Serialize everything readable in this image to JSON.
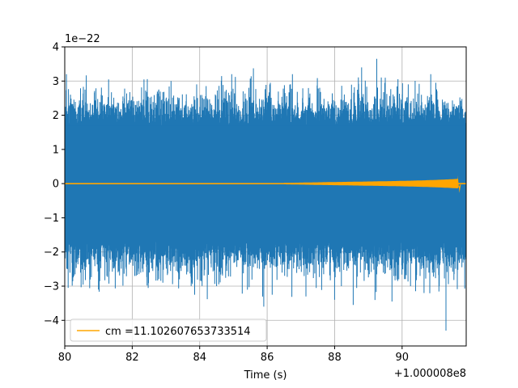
{
  "chart_data": {
    "type": "line",
    "title": "",
    "xlabel": "Time (s)",
    "ylabel": "",
    "x_offset_label": "+1.000008e8",
    "y_scale_label": "1e−22",
    "xlim": [
      80,
      91.9
    ],
    "ylim": [
      -4.75,
      4.0
    ],
    "grid": true,
    "x_ticks": [
      80,
      82,
      84,
      86,
      88,
      90
    ],
    "x_tick_labels": [
      "80",
      "82",
      "84",
      "86",
      "88",
      "90"
    ],
    "y_ticks": [
      -4,
      -3,
      -2,
      -1,
      0,
      1,
      2,
      3,
      4
    ],
    "y_tick_labels": [
      "−4",
      "−3",
      "−2",
      "−1",
      "0",
      "1",
      "2",
      "3",
      "4"
    ],
    "legend_position": "lower-left",
    "series": [
      {
        "name": "",
        "color": "#1f77b4",
        "kind": "noise",
        "envelope_x": [
          80,
          91.9
        ],
        "core_amplitude": [
          -1.7,
          1.7
        ],
        "peak_range": [
          -3.6,
          3.65
        ],
        "min_value": -4.3,
        "max_value": 3.65
      },
      {
        "name": "cm =11.102607653733514",
        "color": "#ffa500",
        "kind": "chirp",
        "x_start": 86.5,
        "x_merger": 91.65,
        "peak_amplitude": 0.25,
        "value_before": 0
      }
    ]
  }
}
